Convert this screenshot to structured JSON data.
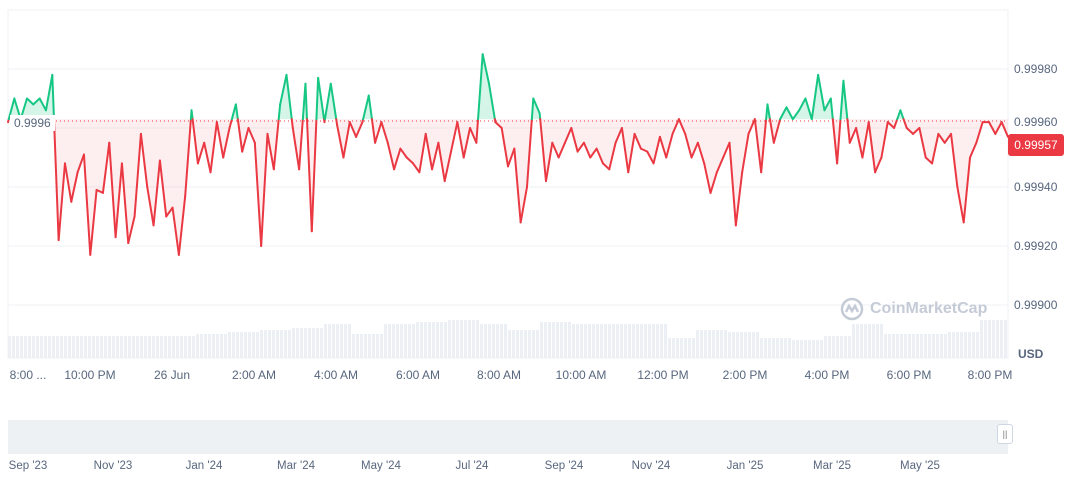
{
  "chart_data": {
    "type": "line",
    "title": "",
    "currency": "USD",
    "baseline": 0.99963,
    "baseline_label": "0.9996",
    "current_price_label": "0.99957",
    "ylim": [
      0.99885,
      1.0
    ],
    "y_ticks": [
      "0.99980",
      "0.99960",
      "0.99940",
      "0.99920",
      "0.99900"
    ],
    "y_tick_values": [
      0.9998,
      0.9996,
      0.9994,
      0.9992,
      0.999
    ],
    "x_ticks": [
      "8:00 ...",
      "10:00 PM",
      "26 Jun",
      "2:00 AM",
      "4:00 AM",
      "6:00 AM",
      "8:00 AM",
      "10:00 AM",
      "12:00 PM",
      "2:00 PM",
      "4:00 PM",
      "6:00 PM",
      "8:00 PM"
    ],
    "navigator_ticks": [
      "Sep '23",
      "Nov '23",
      "Jan '24",
      "Mar '24",
      "May '24",
      "Jul '24",
      "Sep '24",
      "Nov '24",
      "Jan '25",
      "Mar '25",
      "May '25"
    ],
    "values": [
      0.99962,
      0.9997,
      0.99963,
      0.9997,
      0.99968,
      0.9997,
      0.99966,
      0.99978,
      0.99922,
      0.99948,
      0.99935,
      0.99945,
      0.99951,
      0.99917,
      0.99939,
      0.99938,
      0.99955,
      0.99923,
      0.99948,
      0.99921,
      0.9993,
      0.99958,
      0.9994,
      0.99927,
      0.99949,
      0.9993,
      0.99933,
      0.99917,
      0.99937,
      0.99966,
      0.99948,
      0.99955,
      0.99945,
      0.99962,
      0.9995,
      0.9996,
      0.99968,
      0.99952,
      0.9996,
      0.99955,
      0.9992,
      0.99958,
      0.99946,
      0.99968,
      0.99978,
      0.9996,
      0.99946,
      0.99975,
      0.99925,
      0.99977,
      0.99962,
      0.99975,
      0.99961,
      0.9995,
      0.99962,
      0.99957,
      0.99962,
      0.99971,
      0.99955,
      0.99962,
      0.99955,
      0.99946,
      0.99953,
      0.9995,
      0.99948,
      0.99945,
      0.99958,
      0.99946,
      0.99955,
      0.99942,
      0.99952,
      0.99962,
      0.9995,
      0.9996,
      0.99955,
      0.99985,
      0.99975,
      0.99962,
      0.9996,
      0.99947,
      0.99953,
      0.99928,
      0.9994,
      0.9997,
      0.99965,
      0.99942,
      0.99955,
      0.9995,
      0.99955,
      0.9996,
      0.99952,
      0.99955,
      0.9995,
      0.99953,
      0.99948,
      0.99946,
      0.99955,
      0.9996,
      0.99945,
      0.99958,
      0.99953,
      0.99952,
      0.99948,
      0.99957,
      0.9995,
      0.99958,
      0.99963,
      0.99958,
      0.9995,
      0.99955,
      0.99948,
      0.99938,
      0.99945,
      0.9995,
      0.99955,
      0.99927,
      0.99945,
      0.99958,
      0.99963,
      0.99945,
      0.99968,
      0.99955,
      0.99963,
      0.99967,
      0.99963,
      0.99966,
      0.9997,
      0.99963,
      0.99978,
      0.99966,
      0.9997,
      0.99948,
      0.99976,
      0.99955,
      0.9996,
      0.9995,
      0.99962,
      0.99945,
      0.9995,
      0.99962,
      0.9996,
      0.99966,
      0.9996,
      0.99958,
      0.9996,
      0.9995,
      0.99948,
      0.99958,
      0.99955,
      0.99958,
      0.9994,
      0.99928,
      0.9995,
      0.99955,
      0.99962,
      0.99962,
      0.99958,
      0.99962,
      0.99957
    ],
    "volume_relative": [
      0.55,
      0.55,
      0.55,
      0.55,
      0.55,
      0.55,
      0.6,
      0.65,
      0.7,
      0.75,
      0.85,
      0.6,
      0.85,
      0.9,
      0.95,
      0.85,
      0.7,
      0.9,
      0.85,
      0.85,
      0.85,
      0.5,
      0.7,
      0.65,
      0.5,
      0.45,
      0.55,
      0.85,
      0.6,
      0.6,
      0.65,
      0.95
    ]
  },
  "watermark": "CoinMarketCap",
  "colors": {
    "up": "#16c784",
    "down": "#ea3943"
  }
}
